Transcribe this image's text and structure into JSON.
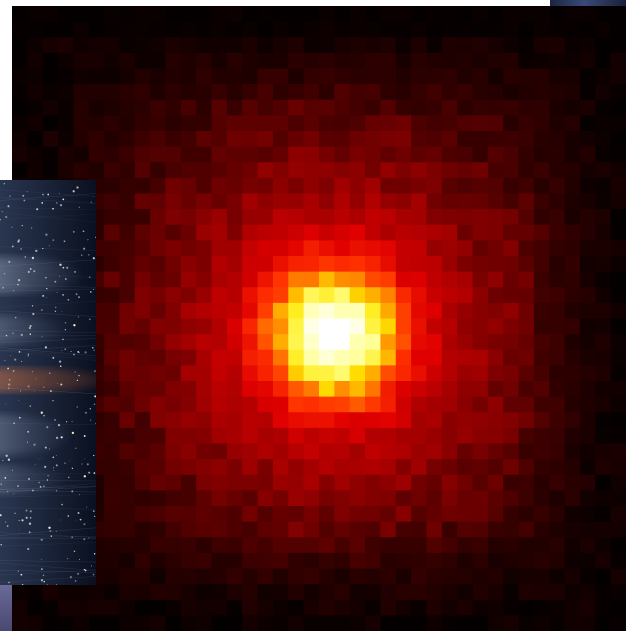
{
  "scene": {
    "description_icons": [
      "heatmap-image",
      "space-image"
    ]
  },
  "heatmap": {
    "grid_cols": 40,
    "grid_rows": 40,
    "center_col": 20.5,
    "center_row": 20.5,
    "colors": {
      "edge": "#1a0000",
      "mid": "#cc0000",
      "hot": "#ff6a00",
      "core": "#ffff66",
      "peak": "#ffffff"
    }
  },
  "space": {
    "colors": {
      "background": "#0b1424",
      "streak_warm": "#c07048",
      "streak_cool": "#a8b4c8"
    }
  }
}
